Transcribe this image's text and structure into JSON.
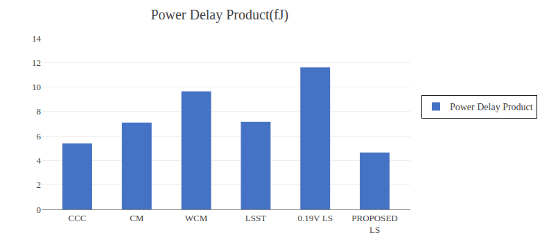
{
  "chart_data": {
    "type": "bar",
    "title": "Power Delay Product(fJ)",
    "categories": [
      "CCC",
      "CM",
      "WCM",
      "LSST",
      "0.19V LS",
      "PROPOSED\nLS"
    ],
    "series": [
      {
        "name": "Power Delay Product",
        "color": "#4472C4",
        "values": [
          5.4,
          7.1,
          9.65,
          7.15,
          11.6,
          4.65
        ]
      }
    ],
    "ylim": [
      0,
      14
    ],
    "yticks": [
      0,
      2,
      4,
      6,
      8,
      10,
      12,
      14
    ],
    "grid": true,
    "legend": "right"
  }
}
